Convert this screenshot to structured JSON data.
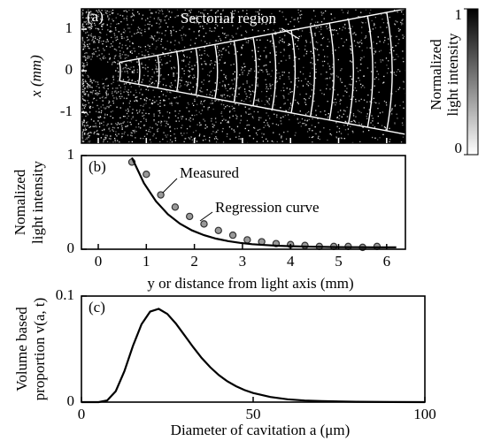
{
  "chart_data": [
    {
      "type": "image",
      "panel_label": "(a)",
      "ylabel": "x (mm)",
      "ylim": [
        -1.74,
        1.49
      ],
      "yticks": [
        1,
        0,
        -1
      ],
      "annotation": "Sectorial region",
      "colorbar": {
        "label": [
          "Normalized",
          "light intensity"
        ],
        "clim": [
          0,
          1
        ],
        "ticks": [
          0,
          1
        ],
        "colors": [
          "#ffffff",
          "#000000"
        ]
      }
    },
    {
      "type": "line",
      "panel_label": "(b)",
      "xlabel": "y or distance from light axis  (mm)",
      "ylabel": [
        "Nomalized",
        "light intensity"
      ],
      "xlim": [
        -0.35,
        6.39
      ],
      "xticks": [
        0,
        1,
        2,
        3,
        4,
        5,
        6
      ],
      "ylim": [
        0,
        1
      ],
      "yticks": [
        0,
        1
      ],
      "series": [
        {
          "name": "Measured",
          "type": "scatter",
          "color": "#999999",
          "x": [
            0.7,
            1.0,
            1.3,
            1.6,
            1.9,
            2.2,
            2.5,
            2.8,
            3.1,
            3.4,
            3.7,
            4.0,
            4.3,
            4.6,
            4.9,
            5.2,
            5.5,
            5.8
          ],
          "values": [
            0.93,
            0.8,
            0.58,
            0.45,
            0.35,
            0.27,
            0.2,
            0.15,
            0.1,
            0.08,
            0.06,
            0.05,
            0.04,
            0.03,
            0.03,
            0.03,
            0.02,
            0.03
          ]
        },
        {
          "name": "Regression curve",
          "type": "line",
          "color": "#000000",
          "x": [
            0.7,
            0.95,
            1.2,
            1.45,
            1.7,
            1.95,
            2.2,
            2.45,
            2.7,
            2.95,
            3.2,
            3.45,
            3.7,
            3.95,
            4.2,
            4.45,
            4.7,
            4.95,
            5.2,
            5.45,
            5.7,
            5.95,
            6.2
          ],
          "values": [
            0.977,
            0.706,
            0.512,
            0.373,
            0.273,
            0.201,
            0.15,
            0.113,
            0.087,
            0.068,
            0.054,
            0.045,
            0.038,
            0.033,
            0.029,
            0.026,
            0.025,
            0.023,
            0.022,
            0.022,
            0.021,
            0.021,
            0.021
          ]
        }
      ]
    },
    {
      "type": "line",
      "panel_label": "(c)",
      "xlabel": "Diameter of cavitation  a (μm)",
      "ylabel": [
        "Volume based",
        "proportion v(a, t)"
      ],
      "xlim": [
        0,
        100
      ],
      "xticks": [
        0,
        50,
        100
      ],
      "ylim": [
        0,
        0.1
      ],
      "yticks": [
        0,
        0.1
      ],
      "series": [
        {
          "type": "line",
          "color": "#000000",
          "x": [
            0,
            2.5,
            5,
            7.5,
            10,
            12.5,
            15,
            17.5,
            20,
            22.5,
            25,
            27.5,
            30,
            32.5,
            35,
            37.5,
            40,
            42.5,
            45,
            47.5,
            50,
            55,
            60,
            65,
            70,
            80,
            90,
            100
          ],
          "values": [
            0,
            0,
            0,
            0.0016,
            0.0103,
            0.0291,
            0.053,
            0.0734,
            0.0853,
            0.0879,
            0.0832,
            0.0741,
            0.0631,
            0.052,
            0.0417,
            0.0329,
            0.0255,
            0.0196,
            0.015,
            0.0113,
            0.0086,
            0.0048,
            0.0027,
            0.0015,
            0.0009,
            0.0003,
            0.0001,
            0
          ]
        }
      ]
    }
  ]
}
